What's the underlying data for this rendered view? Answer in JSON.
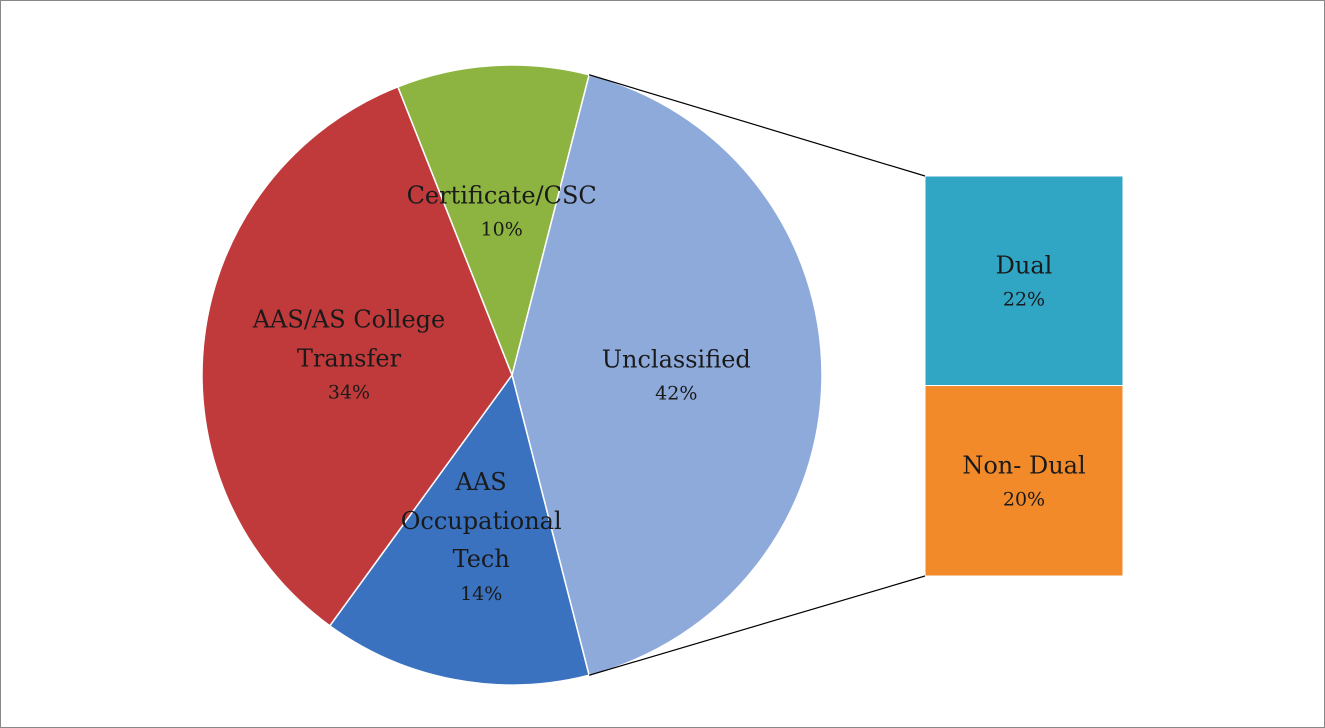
{
  "chart_data": {
    "type": "pie-of-bar",
    "categories": [
      "Unclassified",
      "AAS Occupational Tech",
      "AAS/AS College Transfer",
      "Certificate/CSC"
    ],
    "values": [
      42,
      14,
      34,
      10
    ],
    "value_labels": [
      "42%",
      "14%",
      "34%",
      "10%"
    ],
    "colors": [
      "#8eaadb",
      "#3a72bf",
      "#c0393b",
      "#8db441"
    ],
    "bar": {
      "categories": [
        "Dual",
        "Non- Dual"
      ],
      "values": [
        22,
        20
      ],
      "value_labels": [
        "22%",
        "20%"
      ],
      "colors": [
        "#31a5c4",
        "#f38a2a"
      ]
    }
  }
}
